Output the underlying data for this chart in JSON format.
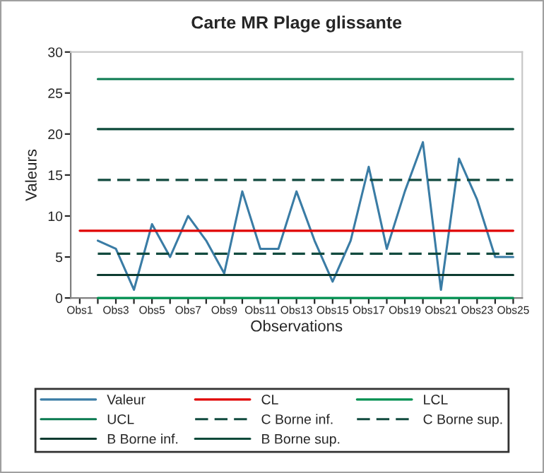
{
  "chart_data": {
    "type": "line",
    "title": "Carte MR Plage glissante",
    "xlabel": "Observations",
    "ylabel": "Valeurs",
    "categories": [
      "Obs1",
      null,
      "Obs3",
      null,
      "Obs5",
      null,
      "Obs7",
      null,
      "Obs9",
      null,
      "Obs11",
      null,
      "Obs13",
      null,
      "Obs15",
      null,
      "Obs17",
      null,
      "Obs19",
      null,
      "Obs21",
      null,
      "Obs23",
      null,
      "Obs25"
    ],
    "ylim": [
      0,
      30
    ],
    "yticks": [
      0,
      5,
      10,
      15,
      20,
      25,
      30
    ],
    "grid": false,
    "legend": "bottom",
    "marker": "none",
    "series": [
      {
        "name": "Valeur",
        "color": "#3a7ca5",
        "line_style": "solid",
        "values": [
          null,
          7,
          6,
          1,
          9,
          5,
          10,
          7,
          3,
          13,
          6,
          6,
          13,
          7,
          2,
          7,
          16,
          6,
          13,
          19,
          1,
          17,
          12,
          5,
          5
        ]
      },
      {
        "name": "CL",
        "color": "#e00000",
        "line_style": "solid",
        "values": [
          8.2,
          8.2,
          8.2,
          8.2,
          8.2,
          8.2,
          8.2,
          8.2,
          8.2,
          8.2,
          8.2,
          8.2,
          8.2,
          8.2,
          8.2,
          8.2,
          8.2,
          8.2,
          8.2,
          8.2,
          8.2,
          8.2,
          8.2,
          8.2,
          8.2
        ]
      },
      {
        "name": "LCL",
        "color": "#009050",
        "line_style": "solid",
        "values": [
          null,
          0,
          0,
          0,
          0,
          0,
          0,
          0,
          0,
          0,
          0,
          0,
          0,
          0,
          0,
          0,
          0,
          0,
          0,
          0,
          0,
          0,
          0,
          0,
          0
        ]
      },
      {
        "name": "UCL",
        "color": "#0a7a50",
        "line_style": "solid",
        "values": [
          null,
          26.7,
          26.7,
          26.7,
          26.7,
          26.7,
          26.7,
          26.7,
          26.7,
          26.7,
          26.7,
          26.7,
          26.7,
          26.7,
          26.7,
          26.7,
          26.7,
          26.7,
          26.7,
          26.7,
          26.7,
          26.7,
          26.7,
          26.7,
          26.7
        ]
      },
      {
        "name": "C Borne inf.",
        "color": "#114a3e",
        "line_style": "dashed",
        "values": [
          null,
          5.4,
          5.4,
          5.4,
          5.4,
          5.4,
          5.4,
          5.4,
          5.4,
          5.4,
          5.4,
          5.4,
          5.4,
          5.4,
          5.4,
          5.4,
          5.4,
          5.4,
          5.4,
          5.4,
          5.4,
          5.4,
          5.4,
          5.4,
          5.4
        ]
      },
      {
        "name": "C Borne sup.",
        "color": "#114a3e",
        "line_style": "dashed",
        "values": [
          null,
          14.4,
          14.4,
          14.4,
          14.4,
          14.4,
          14.4,
          14.4,
          14.4,
          14.4,
          14.4,
          14.4,
          14.4,
          14.4,
          14.4,
          14.4,
          14.4,
          14.4,
          14.4,
          14.4,
          14.4,
          14.4,
          14.4,
          14.4,
          14.4
        ]
      },
      {
        "name": "B Borne inf.",
        "color": "#0d3b30",
        "line_style": "solid",
        "values": [
          null,
          2.8,
          2.8,
          2.8,
          2.8,
          2.8,
          2.8,
          2.8,
          2.8,
          2.8,
          2.8,
          2.8,
          2.8,
          2.8,
          2.8,
          2.8,
          2.8,
          2.8,
          2.8,
          2.8,
          2.8,
          2.8,
          2.8,
          2.8,
          2.8
        ]
      },
      {
        "name": "B Borne sup.",
        "color": "#0d4a3a",
        "line_style": "solid",
        "values": [
          null,
          20.6,
          20.6,
          20.6,
          20.6,
          20.6,
          20.6,
          20.6,
          20.6,
          20.6,
          20.6,
          20.6,
          20.6,
          20.6,
          20.6,
          20.6,
          20.6,
          20.6,
          20.6,
          20.6,
          20.6,
          20.6,
          20.6,
          20.6,
          20.6
        ]
      }
    ]
  }
}
